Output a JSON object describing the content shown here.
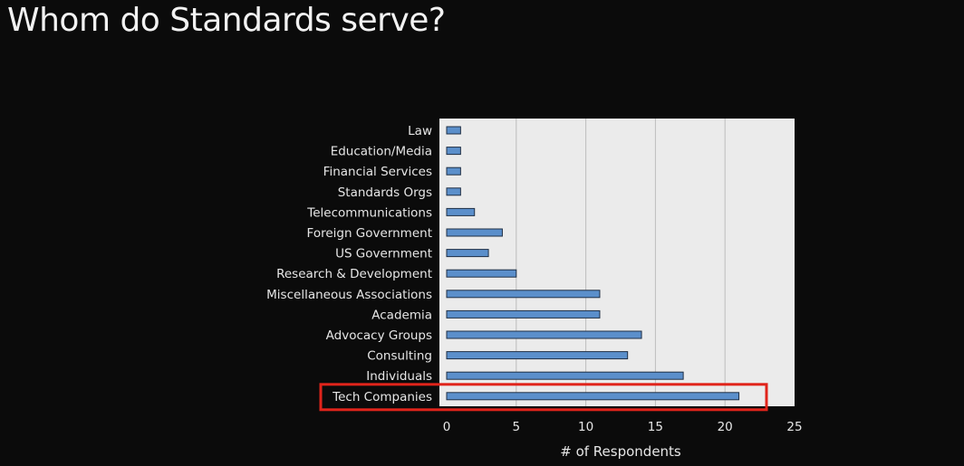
{
  "slide": {
    "title": "Whom do Standards serve?"
  },
  "chart_data": {
    "type": "bar",
    "orientation": "horizontal",
    "categories": [
      "Law",
      "Education/Media",
      "Financial Services",
      "Standards Orgs",
      "Telecommunications",
      "Foreign Government",
      "US Government",
      "Research & Development",
      "Miscellaneous Associations",
      "Academia",
      "Advocacy Groups",
      "Consulting",
      "Individuals",
      "Tech Companies"
    ],
    "values": [
      1,
      1,
      1,
      1,
      2,
      4,
      3,
      5,
      11,
      11,
      14,
      13,
      17,
      21
    ],
    "xlabel": "# of Respondents",
    "ylabel": "",
    "xlim": [
      0,
      25
    ],
    "xticks": [
      0,
      5,
      10,
      15,
      20,
      25
    ],
    "grid": "vertical",
    "highlighted_category": "Tech Companies",
    "colors": {
      "bar_fill": "#5b8fcb",
      "bar_stroke": "#1f2f45",
      "plot_background": "#ebebeb",
      "gridline": "#bdbdbd",
      "highlight_box": "#e0241b",
      "label_text": "#e6e6e6"
    }
  }
}
